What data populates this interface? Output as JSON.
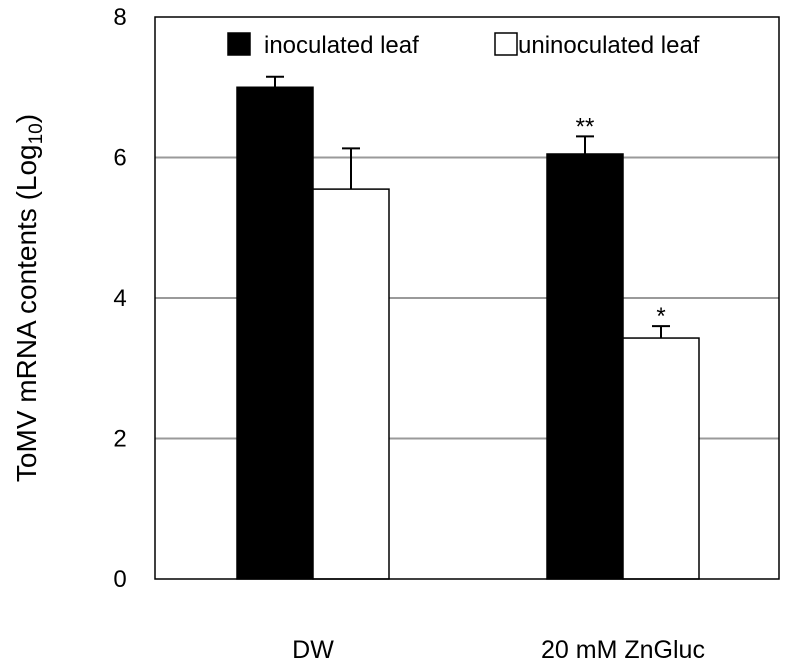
{
  "chart_data": {
    "type": "bar",
    "ylabel": "ToMV mRNA contents (Log",
    "ylabel_sub": "10",
    "ylabel_close": ")",
    "ylim": [
      0,
      8
    ],
    "yticks": [
      "0",
      "2",
      "4",
      "6",
      "8"
    ],
    "gridlines": [
      2,
      4,
      6
    ],
    "grid": true,
    "legend_placement": "top-right",
    "categories": [
      "DW",
      "20 mM ZnGluc"
    ],
    "series": [
      {
        "name": "inoculated leaf",
        "color": "#000000",
        "values": [
          7.0,
          6.05
        ],
        "errors": [
          0.15,
          0.25
        ],
        "significance": [
          "",
          "**"
        ]
      },
      {
        "name": "uninoculated leaf",
        "color": "#ffffff",
        "values": [
          5.55,
          3.43
        ],
        "errors": [
          0.58,
          0.17
        ],
        "significance": [
          "",
          "*"
        ]
      }
    ]
  }
}
